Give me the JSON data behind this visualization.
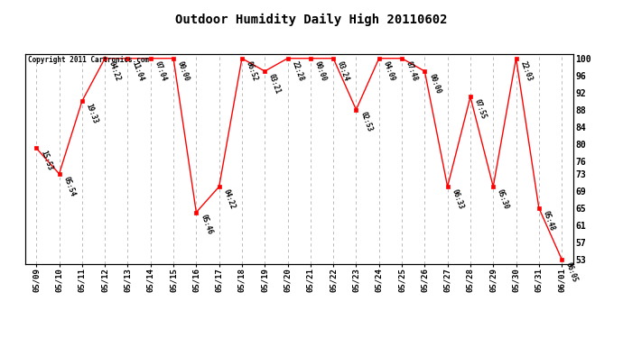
{
  "title": "Outdoor Humidity Daily High 20110602",
  "copyright": "Copyright 2011 Cartronics.com",
  "x_labels": [
    "05/09",
    "05/10",
    "05/11",
    "05/12",
    "05/13",
    "05/14",
    "05/15",
    "05/16",
    "05/17",
    "05/18",
    "05/19",
    "05/20",
    "05/21",
    "05/22",
    "05/23",
    "05/24",
    "05/25",
    "05/26",
    "05/27",
    "05/28",
    "05/29",
    "05/30",
    "05/31",
    "06/01"
  ],
  "x_indices": [
    0,
    1,
    2,
    3,
    4,
    5,
    6,
    7,
    8,
    9,
    10,
    11,
    12,
    13,
    14,
    15,
    16,
    17,
    18,
    19,
    20,
    21,
    22,
    23
  ],
  "y_values": [
    79,
    73,
    90,
    100,
    100,
    100,
    100,
    64,
    70,
    100,
    97,
    100,
    100,
    100,
    88,
    100,
    100,
    97,
    70,
    91,
    70,
    100,
    65,
    53
  ],
  "point_labels": [
    "15:53",
    "05:54",
    "19:33",
    "04:22",
    "11:04",
    "07:04",
    "00:00",
    "05:46",
    "04:22",
    "06:52",
    "03:21",
    "22:28",
    "00:00",
    "03:24",
    "02:53",
    "04:09",
    "07:48",
    "00:00",
    "06:33",
    "07:55",
    "05:30",
    "22:03",
    "05:48",
    "06:05"
  ],
  "line_color": "#ff0000",
  "marker_color": "#ff0000",
  "bg_color": "#ffffff",
  "grid_color": "#b0b0b0",
  "ylim_min": 52,
  "ylim_max": 101,
  "yticks": [
    53,
    57,
    61,
    65,
    69,
    73,
    76,
    80,
    84,
    88,
    92,
    96,
    100
  ]
}
